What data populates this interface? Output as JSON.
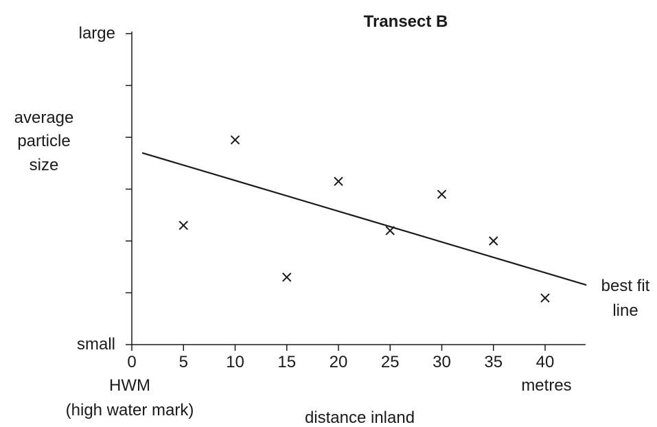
{
  "chart_data": {
    "type": "scatter",
    "title": "Transect B",
    "xlabel": "distance inland",
    "x_unit_label": "metres",
    "x_origin_label": [
      "HWM",
      "(high water mark)"
    ],
    "ylabel": [
      "average",
      "particle",
      "size"
    ],
    "y_top_label": "large",
    "y_bottom_label": "small",
    "x_ticks": [
      0,
      5,
      10,
      15,
      20,
      25,
      30,
      35,
      40
    ],
    "xlim": [
      0,
      44
    ],
    "ylim": [
      0,
      6
    ],
    "y_tick_count": 6,
    "points": [
      {
        "x": 5,
        "y": 2.3
      },
      {
        "x": 10,
        "y": 3.95
      },
      {
        "x": 15,
        "y": 1.3
      },
      {
        "x": 20,
        "y": 3.15
      },
      {
        "x": 25,
        "y": 2.2
      },
      {
        "x": 30,
        "y": 2.9
      },
      {
        "x": 35,
        "y": 2.0
      },
      {
        "x": 40,
        "y": 0.9
      }
    ],
    "best_fit": {
      "x": [
        1,
        44
      ],
      "y": [
        3.7,
        1.15
      ]
    },
    "best_fit_label": [
      "best fit",
      "line"
    ],
    "grid": false,
    "legend": false
  }
}
